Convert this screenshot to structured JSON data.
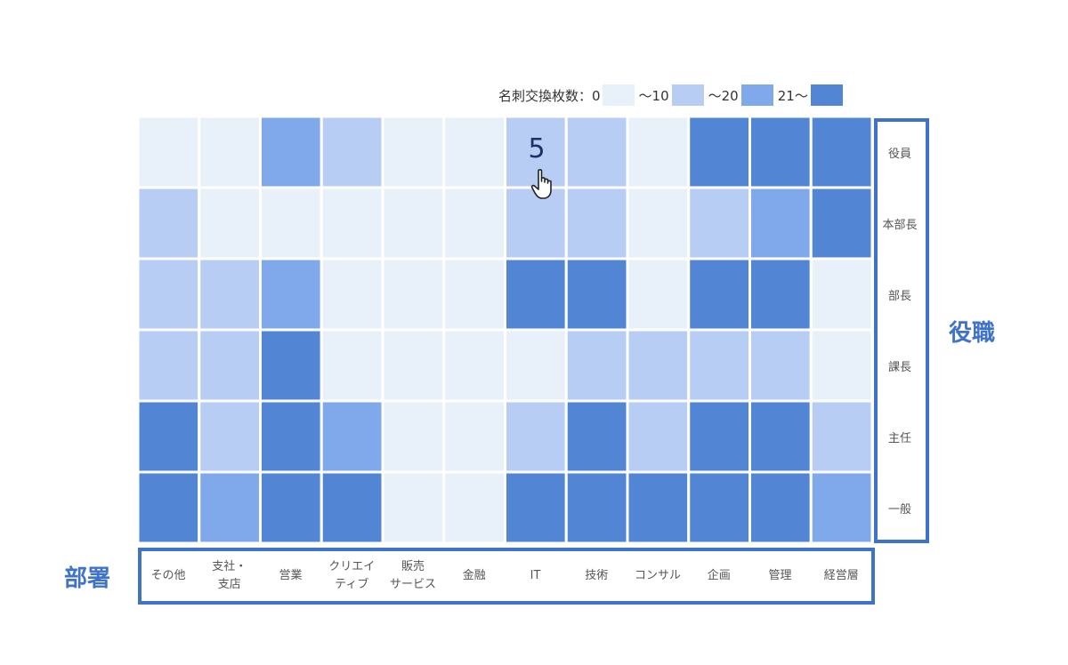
{
  "chart_data": {
    "type": "heatmap",
    "title": "",
    "xlabel": "部署",
    "ylabel": "役職",
    "x": [
      "その他",
      "支社・\n支店",
      "営業",
      "クリエイ\nティブ",
      "販売\nサービス",
      "金融",
      "IT",
      "技術",
      "コンサル",
      "企画",
      "管理",
      "経営層"
    ],
    "y": [
      "役員",
      "本部長",
      "部長",
      "課長",
      "主任",
      "一般"
    ],
    "levels": [
      0,
      1,
      2,
      3
    ],
    "z": [
      [
        0,
        0,
        2,
        1,
        0,
        0,
        1,
        1,
        0,
        3,
        3,
        3
      ],
      [
        1,
        0,
        0,
        0,
        0,
        0,
        1,
        1,
        0,
        1,
        2,
        3
      ],
      [
        1,
        1,
        2,
        0,
        0,
        0,
        3,
        3,
        0,
        3,
        3,
        0
      ],
      [
        1,
        1,
        3,
        0,
        0,
        0,
        0,
        1,
        1,
        1,
        1,
        0
      ],
      [
        3,
        1,
        3,
        2,
        0,
        0,
        1,
        3,
        1,
        3,
        3,
        1
      ],
      [
        3,
        2,
        3,
        3,
        0,
        0,
        3,
        3,
        3,
        3,
        3,
        2
      ]
    ],
    "colors": [
      "#e8f0fa",
      "#b7cdf3",
      "#80a9eb",
      "#5285d4"
    ],
    "legend": {
      "title": "名刺交換枚数：0",
      "labels": [
        "～10",
        "～20",
        "21～"
      ],
      "position": "top-right"
    },
    "hover": {
      "value": "5",
      "row": "役員",
      "column": "IT"
    }
  }
}
